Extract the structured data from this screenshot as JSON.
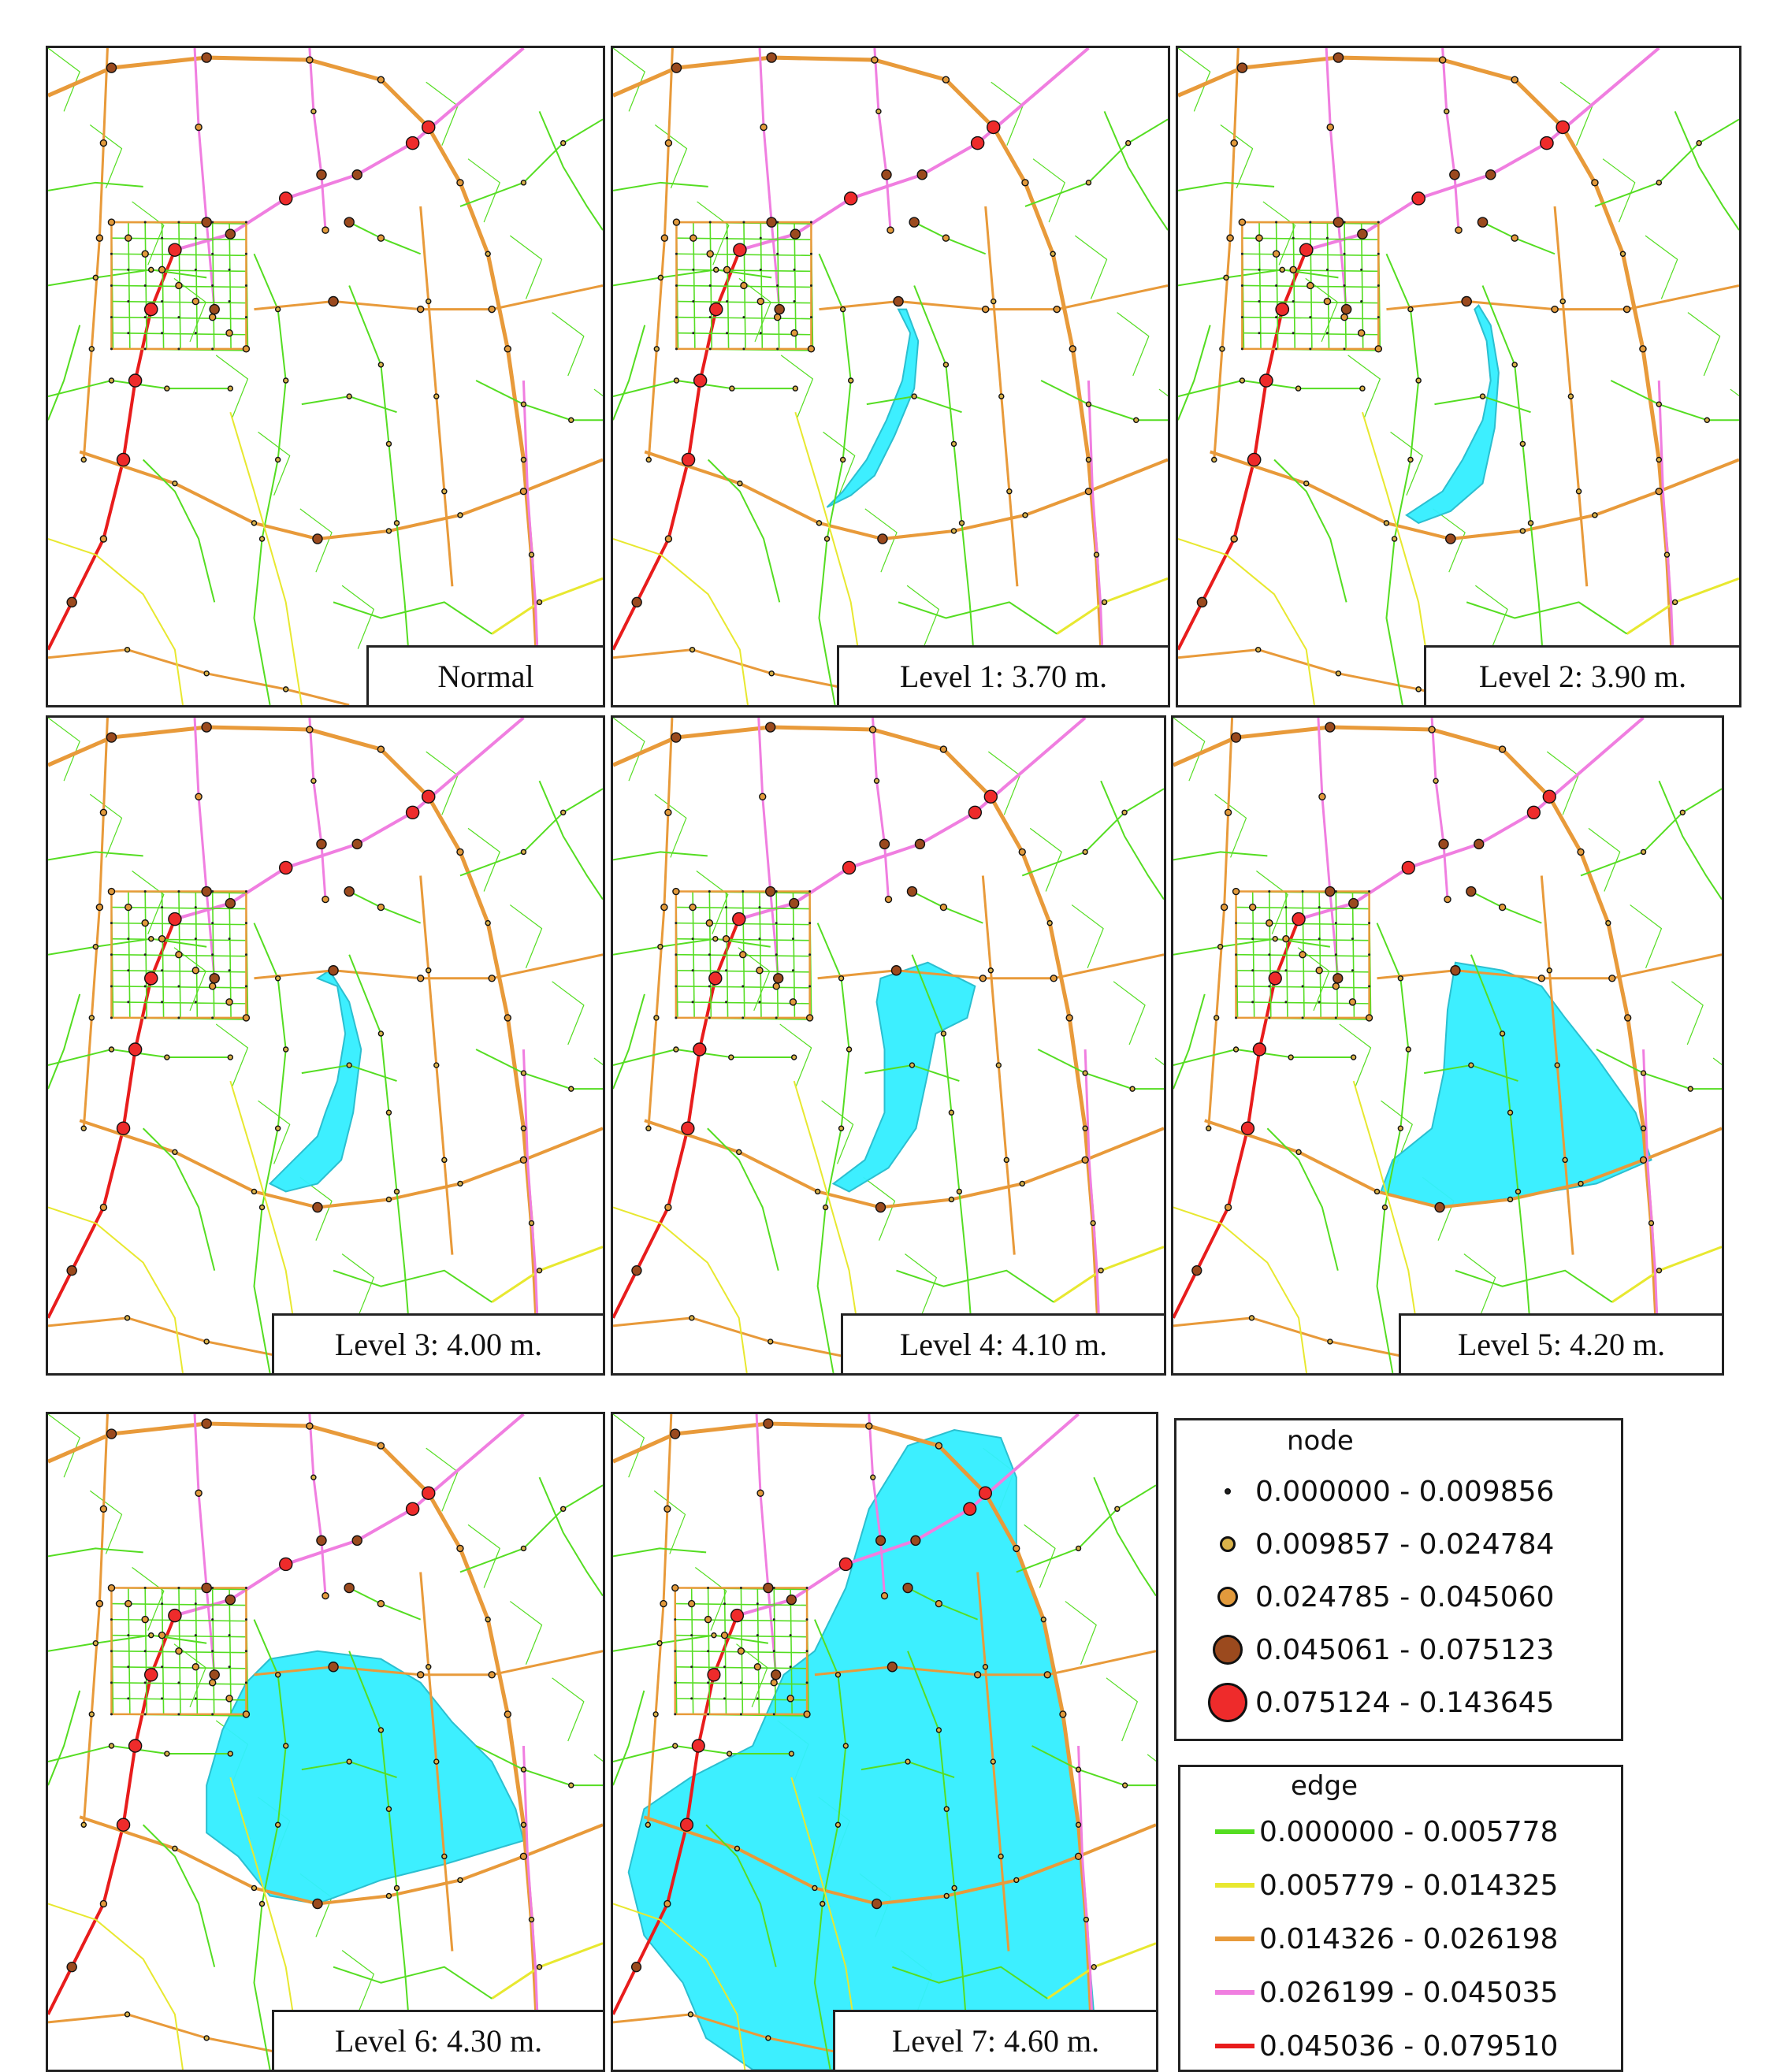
{
  "panels": [
    {
      "label": "Normal",
      "flood": 0
    },
    {
      "label": "Level 1: 3.70 m.",
      "flood": 1
    },
    {
      "label": "Level 2: 3.90 m.",
      "flood": 2
    },
    {
      "label": "Level 3: 4.00 m.",
      "flood": 3
    },
    {
      "label": "Level 4: 4.10 m.",
      "flood": 4
    },
    {
      "label": "Level 5: 4.20 m.",
      "flood": 5
    },
    {
      "label": "Level 6: 4.30 m.",
      "flood": 6
    },
    {
      "label": "Level 7: 4.60 m.",
      "flood": 7
    }
  ],
  "legend_node": {
    "title": "node",
    "items": [
      {
        "range": "0.000000 - 0.009856",
        "color": "#222222",
        "size_class": 1
      },
      {
        "range": "0.009857 - 0.024784",
        "color": "#d9b24a",
        "size_class": 2
      },
      {
        "range": "0.024785 - 0.045060",
        "color": "#e29a3c",
        "size_class": 3
      },
      {
        "range": "0.045061 - 0.075123",
        "color": "#9b4a1e",
        "size_class": 4
      },
      {
        "range": "0.075124 - 0.143645",
        "color": "#ee2b2b",
        "size_class": 5
      }
    ]
  },
  "legend_edge": {
    "title": "edge",
    "items": [
      {
        "range": "0.000000 - 0.005778",
        "color": "#55dd22"
      },
      {
        "range": "0.005779 - 0.014325",
        "color": "#e8e830"
      },
      {
        "range": "0.014326 - 0.026198",
        "color": "#e89a3a"
      },
      {
        "range": "0.026199 - 0.045035",
        "color": "#f07ee0"
      },
      {
        "range": "0.045036 - 0.079510",
        "color": "#e81c1c"
      }
    ]
  },
  "colors": {
    "flood": "#33eeff"
  }
}
